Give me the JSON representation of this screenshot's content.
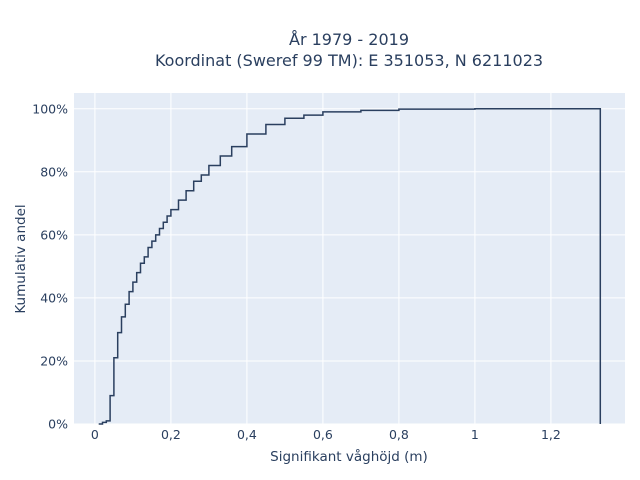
{
  "chart_data": {
    "type": "line",
    "line_shape": "step",
    "title_lines": [
      "År 1979 - 2019",
      "Koordinat (Sweref 99 TM): E 351053, N 6211023"
    ],
    "xlabel": "Signifikant våghöjd (m)",
    "ylabel": "Kumulativ andel",
    "xlim": [
      -0.055,
      1.395
    ],
    "ylim": [
      0,
      1.05
    ],
    "x_ticks": [
      0,
      0.2,
      0.4,
      0.6,
      0.8,
      1.0,
      1.2
    ],
    "x_tick_labels": [
      "0",
      "0,2",
      "0,4",
      "0,6",
      "0,8",
      "1",
      "1,2"
    ],
    "y_ticks": [
      0,
      0.2,
      0.4,
      0.6,
      0.8,
      1.0
    ],
    "y_tick_labels": [
      "0%",
      "20%",
      "40%",
      "60%",
      "80%",
      "100%"
    ],
    "grid": true,
    "colors": {
      "plot_bg": "#e5ecf6",
      "grid": "#ffffff",
      "line": "#2a3f5f",
      "text": "#2a3f5f"
    },
    "series": [
      {
        "x": [
          0.01,
          0.02,
          0.03,
          0.04,
          0.05,
          0.06,
          0.07,
          0.08,
          0.09,
          0.1,
          0.11,
          0.12,
          0.13,
          0.14,
          0.15,
          0.16,
          0.17,
          0.18,
          0.19,
          0.2,
          0.22,
          0.24,
          0.26,
          0.28,
          0.3,
          0.33,
          0.36,
          0.4,
          0.45,
          0.5,
          0.55,
          0.6,
          0.7,
          0.8,
          1.0,
          1.2,
          1.33,
          1.33
        ],
        "y": [
          0.0,
          0.005,
          0.01,
          0.09,
          0.21,
          0.29,
          0.34,
          0.38,
          0.42,
          0.45,
          0.48,
          0.51,
          0.53,
          0.56,
          0.58,
          0.6,
          0.62,
          0.64,
          0.66,
          0.68,
          0.71,
          0.74,
          0.77,
          0.79,
          0.82,
          0.85,
          0.88,
          0.92,
          0.95,
          0.97,
          0.98,
          0.99,
          0.995,
          0.999,
          1.0,
          1.0,
          1.0,
          0.0
        ]
      }
    ]
  }
}
